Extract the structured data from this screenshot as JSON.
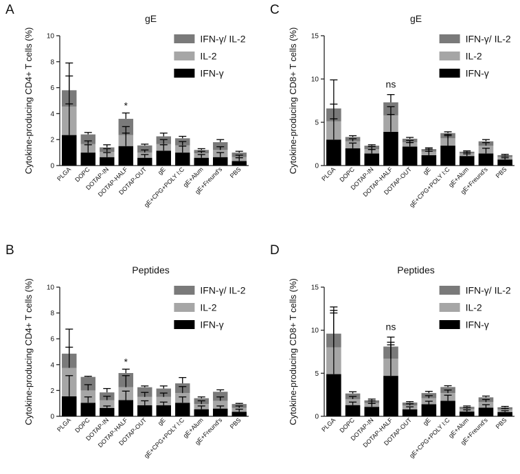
{
  "colors": {
    "ifng_il2": "#7a7a7a",
    "il2": "#a6a6a6",
    "ifng": "#000000",
    "axis": "#222222",
    "text": "#111111"
  },
  "legend": [
    "IFN-γ/ IL-2",
    "IL-2",
    "IFN-γ"
  ],
  "chart_data": [
    {
      "panel": "A",
      "type": "bar",
      "stacked": true,
      "title": "gE",
      "ylabel": "Cytokine-producing CD4+ T cells (%)",
      "ylim": [
        0,
        10
      ],
      "yticks": [
        0,
        2,
        4,
        6,
        8,
        10
      ],
      "categories": [
        "PLGA",
        "DOPC",
        "DOTAP-IN",
        "DOTAP-HALF",
        "DOTAP-OUT",
        "gE",
        "gE+CPG+POLY I:C",
        "gE+Alum",
        "gE+Freund's",
        "PBS"
      ],
      "series": [
        {
          "name": "IFN-γ",
          "values": [
            2.35,
            1.0,
            0.65,
            1.5,
            0.6,
            1.15,
            1.0,
            0.6,
            0.65,
            0.35
          ],
          "errors": [
            2.4,
            0.6,
            0.35,
            1.0,
            0.25,
            0.45,
            0.5,
            0.25,
            0.35,
            0.25
          ]
        },
        {
          "name": "IL-2",
          "values": [
            2.2,
            0.65,
            0.4,
            0.85,
            0.4,
            0.5,
            0.55,
            0.35,
            0.55,
            0.3
          ],
          "errors": [
            2.35,
            0.25,
            0.25,
            0.65,
            0.2,
            0.35,
            0.3,
            0.15,
            0.25,
            0.15
          ]
        },
        {
          "name": "IFN-γ/ IL-2",
          "values": [
            1.25,
            0.75,
            0.35,
            1.25,
            0.55,
            0.6,
            0.55,
            0.25,
            0.6,
            0.35
          ],
          "errors": [
            2.1,
            0.15,
            0.2,
            0.45,
            0.1,
            0.25,
            0.15,
            0.1,
            0.2,
            0.1
          ]
        }
      ],
      "annotations": [
        {
          "category": "DOTAP-HALF",
          "text": "*"
        }
      ]
    },
    {
      "panel": "C",
      "type": "bar",
      "stacked": true,
      "title": "gE",
      "ylabel": "Cytokine-producing CD8+ T cells (%)",
      "ylim": [
        0,
        15
      ],
      "yticks": [
        0,
        5,
        10,
        15
      ],
      "categories": [
        "PLGA",
        "DOPC",
        "DOTAP-IN",
        "DOTAP-HALF",
        "DOTAP-OUT",
        "gE",
        "gE+CPG+POLY I:C",
        "gE+Alum",
        "gE+Freund's",
        "PBS"
      ],
      "series": [
        {
          "name": "IFN-γ",
          "values": [
            3.0,
            2.0,
            1.4,
            3.9,
            2.2,
            1.2,
            2.3,
            1.1,
            1.4,
            0.7
          ],
          "errors": [
            2.4,
            0.6,
            0.45,
            2.0,
            0.45,
            0.45,
            1.3,
            0.25,
            0.6,
            0.2
          ]
        },
        {
          "name": "IL-2",
          "values": [
            2.1,
            0.8,
            0.5,
            1.9,
            0.5,
            0.4,
            0.85,
            0.3,
            0.9,
            0.3
          ],
          "errors": [
            2.0,
            0.3,
            0.3,
            1.0,
            0.2,
            0.3,
            0.3,
            0.15,
            0.35,
            0.1
          ]
        },
        {
          "name": "IFN-γ/ IL-2",
          "values": [
            1.5,
            0.5,
            0.4,
            1.5,
            0.4,
            0.3,
            0.6,
            0.2,
            0.5,
            0.2
          ],
          "errors": [
            3.3,
            0.15,
            0.1,
            0.9,
            0.15,
            0.15,
            0.15,
            0.1,
            0.2,
            0.1
          ]
        }
      ],
      "annotations": [
        {
          "category": "DOTAP-HALF",
          "text": "ns"
        }
      ]
    },
    {
      "panel": "B",
      "type": "bar",
      "stacked": true,
      "title": "Peptides",
      "ylabel": "Cytokine-producing CD4+ T cells (%)",
      "ylim": [
        0,
        10
      ],
      "yticks": [
        0,
        2,
        4,
        6,
        8,
        10
      ],
      "categories": [
        "PLGA",
        "DOPC",
        "DOTAP-IN",
        "DOTAP-HALF",
        "DOTAP-OUT",
        "gE",
        "gE+CPG+POLY I:C",
        "gE+Alum",
        "gE+Freund's",
        "PBS"
      ],
      "series": [
        {
          "name": "IFN-γ",
          "values": [
            1.55,
            1.05,
            0.65,
            1.25,
            0.85,
            0.85,
            1.05,
            0.55,
            0.6,
            0.35
          ],
          "errors": [
            1.6,
            0.45,
            0.15,
            0.7,
            0.35,
            0.25,
            0.45,
            0.25,
            0.2,
            0.2
          ]
        },
        {
          "name": "IL-2",
          "values": [
            2.2,
            0.95,
            0.6,
            1.0,
            0.65,
            0.65,
            0.75,
            0.4,
            0.6,
            0.3
          ],
          "errors": [
            1.6,
            0.45,
            0.3,
            0.9,
            0.35,
            0.3,
            0.5,
            0.25,
            0.3,
            0.15
          ]
        },
        {
          "name": "IFN-γ/ IL-2",
          "values": [
            1.1,
            1.05,
            0.6,
            1.1,
            0.75,
            0.65,
            0.75,
            0.45,
            0.7,
            0.3
          ],
          "errors": [
            1.9,
            0.05,
            0.3,
            0.3,
            0.1,
            0.2,
            0.45,
            0.1,
            0.15,
            0.05
          ]
        }
      ],
      "annotations": [
        {
          "category": "DOTAP-HALF",
          "text": "*"
        }
      ]
    },
    {
      "panel": "D",
      "type": "bar",
      "stacked": true,
      "title": "Peptides",
      "ylabel": "Cytokine-producing CD8+ T cells (%)",
      "ylim": [
        0,
        15
      ],
      "yticks": [
        0,
        5,
        10,
        15
      ],
      "categories": [
        "PLGA",
        "DOPC",
        "DOTAP-IN",
        "DOTAP-HALF",
        "DOTAP-OUT",
        "gE",
        "gE+CPG+POLY I:C",
        "gE+Alum",
        "gE+Freund's",
        "PBS"
      ],
      "series": [
        {
          "name": "IFN-γ",
          "values": [
            4.9,
            1.3,
            1.1,
            4.7,
            0.8,
            1.4,
            1.8,
            0.55,
            1.0,
            0.5
          ],
          "errors": [
            7.1,
            0.35,
            0.4,
            3.6,
            0.3,
            0.35,
            0.65,
            0.2,
            0.35,
            0.15
          ]
        },
        {
          "name": "IL-2",
          "values": [
            3.1,
            0.7,
            0.45,
            2.0,
            0.45,
            0.7,
            0.9,
            0.3,
            0.65,
            0.3
          ],
          "errors": [
            4.3,
            0.3,
            0.25,
            1.9,
            0.2,
            0.3,
            0.35,
            0.15,
            0.3,
            0.1
          ]
        },
        {
          "name": "IFN-γ/ IL-2",
          "values": [
            1.6,
            0.65,
            0.3,
            1.4,
            0.35,
            0.6,
            0.7,
            0.25,
            0.55,
            0.25
          ],
          "errors": [
            3.1,
            0.2,
            0.15,
            1.1,
            0.1,
            0.2,
            0.15,
            0.1,
            0.15,
            0.1
          ]
        }
      ],
      "annotations": [
        {
          "category": "DOTAP-HALF",
          "text": "ns"
        }
      ]
    }
  ]
}
